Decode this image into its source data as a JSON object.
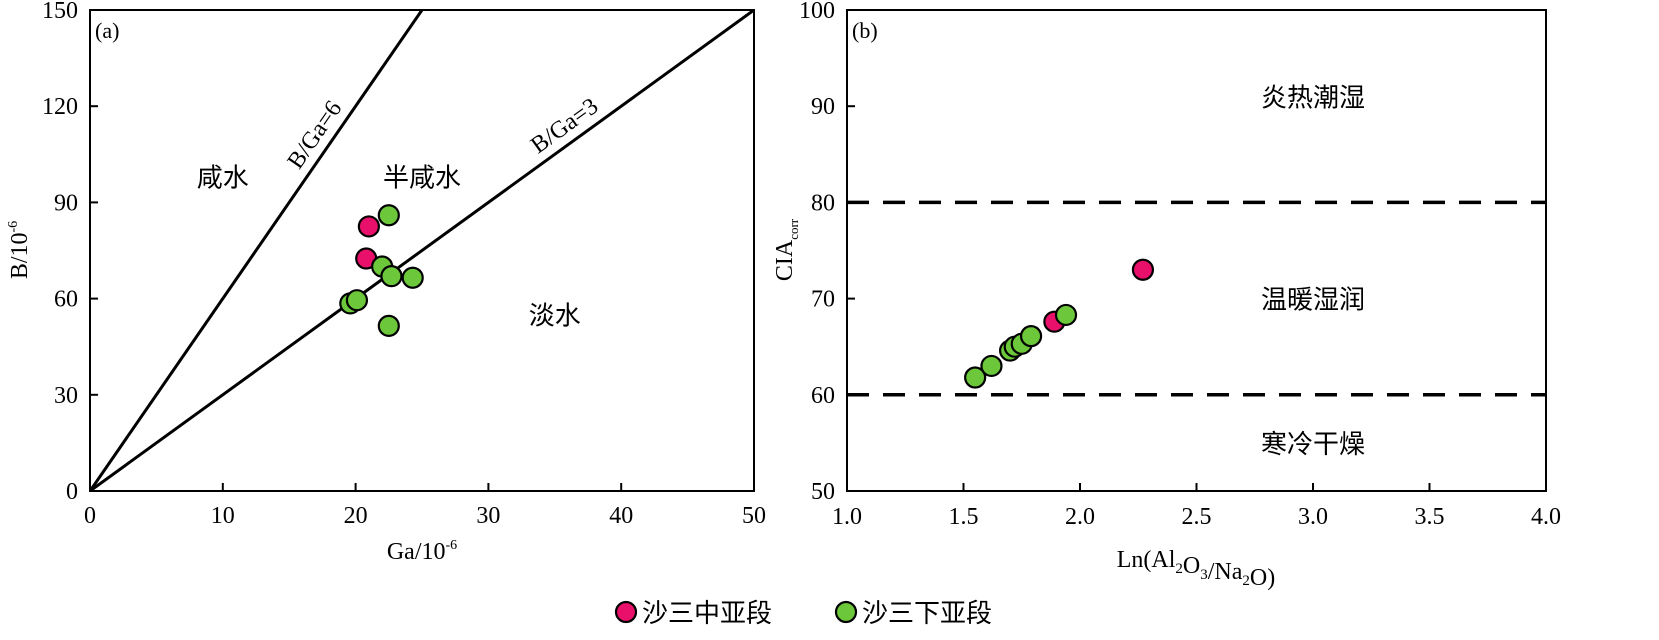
{
  "legend": {
    "items": [
      {
        "label": "沙三中亚段",
        "color": "#e8106a"
      },
      {
        "label": "沙三下亚段",
        "color": "#6cc83a"
      }
    ]
  },
  "chart_data": [
    {
      "type": "scatter",
      "panel_label": "(a)",
      "xlabel": "Ga/10",
      "xlabel_sup": "-6",
      "ylabel": "B/10",
      "ylabel_sup": "-6",
      "xlim": [
        0,
        50
      ],
      "ylim": [
        0,
        150
      ],
      "xticks": [
        0,
        10,
        20,
        30,
        40,
        50
      ],
      "yticks": [
        0,
        30,
        60,
        90,
        120,
        150
      ],
      "lines": [
        {
          "label": "B/Ga=6",
          "slope": 6
        },
        {
          "label": "B/Ga=3",
          "slope": 3
        }
      ],
      "region_labels": [
        {
          "text": "咸水",
          "x": 10,
          "y": 98
        },
        {
          "text": "半咸水",
          "x": 25,
          "y": 98
        },
        {
          "text": "淡水",
          "x": 35,
          "y": 55
        }
      ],
      "series": [
        {
          "name": "沙三中亚段",
          "color": "#e8106a",
          "points": [
            [
              21,
              82.5
            ],
            [
              20.8,
              72.5
            ]
          ]
        },
        {
          "name": "沙三下亚段",
          "color": "#6cc83a",
          "points": [
            [
              22.5,
              86
            ],
            [
              22,
              70
            ],
            [
              22.7,
              67
            ],
            [
              24.3,
              66.5
            ],
            [
              19.6,
              58.5
            ],
            [
              20.1,
              59.5
            ],
            [
              22.5,
              51.5
            ]
          ]
        }
      ]
    },
    {
      "type": "scatter",
      "panel_label": "(b)",
      "xlabel": "Ln(Al2O3/Na2O)",
      "ylabel": "CIA",
      "ylabel_sub": "corr",
      "xlim": [
        1.0,
        4.0
      ],
      "ylim": [
        50,
        100
      ],
      "xticks": [
        "1.0",
        "1.5",
        "2.0",
        "2.5",
        "3.0",
        "3.5",
        "4.0"
      ],
      "yticks": [
        50,
        60,
        70,
        80,
        90,
        100
      ],
      "hlines": [
        80,
        60
      ],
      "region_labels": [
        {
          "text": "炎热潮湿",
          "x": 3.0,
          "y": 91
        },
        {
          "text": "温暖湿润",
          "x": 3.0,
          "y": 70
        },
        {
          "text": "寒冷干燥",
          "x": 3.0,
          "y": 55
        }
      ],
      "series": [
        {
          "name": "沙三中亚段",
          "color": "#e8106a",
          "points": [
            [
              2.27,
              73
            ],
            [
              1.89,
              67.6
            ]
          ]
        },
        {
          "name": "沙三下亚段",
          "color": "#6cc83a",
          "points": [
            [
              1.55,
              61.8
            ],
            [
              1.62,
              63
            ],
            [
              1.7,
              64.6
            ],
            [
              1.72,
              65
            ],
            [
              1.75,
              65.3
            ],
            [
              1.79,
              66.1
            ],
            [
              1.94,
              68.3
            ]
          ]
        }
      ]
    }
  ]
}
